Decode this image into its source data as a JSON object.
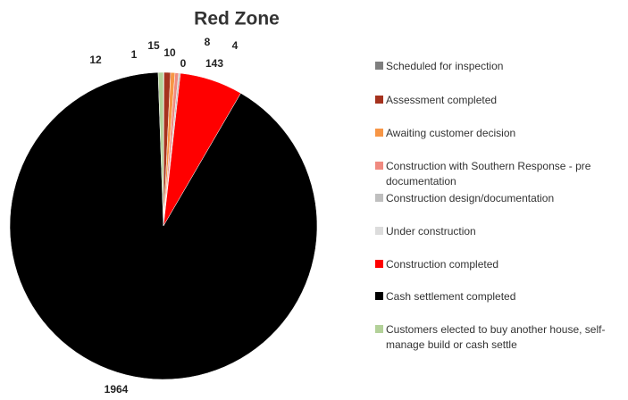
{
  "chart_data": {
    "type": "pie",
    "title": "Red Zone",
    "categories": [
      "Scheduled for inspection",
      "Assessment completed",
      "Awaiting customer decision",
      "Construction with Southern Response - pre documentation",
      "Construction design/documentation",
      "Under construction",
      "Construction completed",
      "Cash settlement completed",
      "Customers elected to buy another house, self-manage build or cash settle"
    ],
    "values": [
      1,
      15,
      10,
      8,
      4,
      0,
      143,
      1964,
      12
    ],
    "colors": [
      "#7f7f7f",
      "#a5321e",
      "#f79646",
      "#f08a80",
      "#bfbfbf",
      "#dcdcdc",
      "#ff0000",
      "#000000",
      "#b3d199"
    ]
  }
}
